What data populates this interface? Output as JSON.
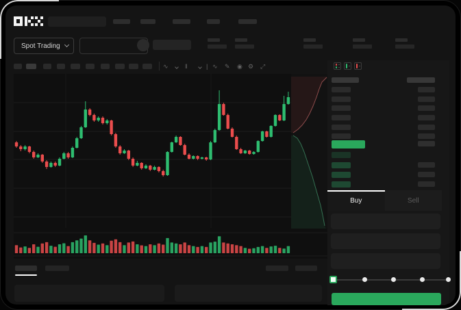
{
  "app": {
    "title": "OKX spot trading terminal (dark mode, skeleton placeholders)"
  },
  "topnav": {
    "logo_text": "OKX",
    "nav_placeholder_count": 5
  },
  "market_bar": {
    "market_type_label": "Spot Trading",
    "stat_group_count": 5
  },
  "toolbar": {
    "timeframe_placeholder_count": 10,
    "icons": [
      "indicator-line",
      "interval-chevron",
      "candle-style",
      "style-chevron",
      "separator",
      "trend-line-tool",
      "draw-tool",
      "snapshot",
      "chart-settings",
      "fullscreen"
    ],
    "glyphs": [
      "∿",
      "",
      "‖",
      "",
      "|",
      "∿",
      "✎",
      "◉",
      "⚙",
      "⤢"
    ]
  },
  "chart_data": {
    "type": "candlestick",
    "title": "",
    "xlabel": "",
    "ylabel": "",
    "note": "stylized mockup chart without visible axis labels; OHLC normalized to 0-100 scale",
    "up_color": "#2ebd70",
    "down_color": "#ea4d4d",
    "grid": {
      "h_lines_y_local": [
        42,
        84,
        125,
        167,
        209
      ],
      "v_lines_x_local": [
        76,
        288
      ]
    },
    "candles_ohlc": [
      [
        52,
        53,
        48,
        49
      ],
      [
        49,
        50,
        45.5,
        47
      ],
      [
        47,
        50,
        46,
        49
      ],
      [
        49,
        49.5,
        44,
        45
      ],
      [
        45,
        46,
        40,
        41
      ],
      [
        41,
        44,
        40.5,
        43
      ],
      [
        43,
        43.5,
        37,
        38
      ],
      [
        38,
        39,
        32.5,
        34
      ],
      [
        34,
        38,
        33.5,
        37
      ],
      [
        37,
        38,
        34,
        35
      ],
      [
        35,
        41,
        34.5,
        40
      ],
      [
        40,
        45,
        39.5,
        44
      ],
      [
        44,
        45,
        40,
        41
      ],
      [
        41,
        49,
        40.5,
        48
      ],
      [
        48,
        56,
        47.5,
        55
      ],
      [
        55,
        64,
        54.5,
        63
      ],
      [
        63,
        82,
        62.5,
        76
      ],
      [
        76,
        77,
        71,
        72
      ],
      [
        72,
        73,
        67,
        68
      ],
      [
        68,
        71,
        67,
        70
      ],
      [
        70,
        71,
        65,
        66
      ],
      [
        66,
        69,
        65,
        68
      ],
      [
        68,
        68.5,
        57,
        58
      ],
      [
        58,
        59,
        48,
        49
      ],
      [
        49,
        50,
        43,
        44
      ],
      [
        44,
        47,
        43.5,
        46
      ],
      [
        46,
        46.5,
        39,
        40
      ],
      [
        40,
        41,
        34,
        35
      ],
      [
        35,
        38.5,
        34.5,
        37
      ],
      [
        37,
        37.5,
        32,
        33
      ],
      [
        33,
        36,
        32.5,
        35
      ],
      [
        35,
        35.5,
        31,
        32
      ],
      [
        32,
        35,
        31.5,
        34
      ],
      [
        34,
        34.5,
        30,
        31
      ],
      [
        31,
        32,
        27,
        28
      ],
      [
        28,
        45.5,
        27.5,
        45
      ],
      [
        45,
        52.5,
        44.5,
        52
      ],
      [
        52,
        57,
        51.5,
        56
      ],
      [
        56,
        56.5,
        49.5,
        50
      ],
      [
        50,
        51,
        42.5,
        43
      ],
      [
        43,
        44,
        39.5,
        40
      ],
      [
        40,
        42.5,
        39.5,
        42
      ],
      [
        42,
        42.5,
        39,
        40
      ],
      [
        40,
        41.5,
        39.5,
        41
      ],
      [
        41,
        41.5,
        38.5,
        39.5
      ],
      [
        39.5,
        53,
        39,
        52
      ],
      [
        52,
        62,
        51.5,
        61
      ],
      [
        61,
        90,
        60.5,
        80
      ],
      [
        80,
        81,
        71.5,
        72
      ],
      [
        72,
        73,
        61.5,
        62
      ],
      [
        62,
        63,
        55.5,
        56
      ],
      [
        56,
        57,
        46.5,
        47
      ],
      [
        47,
        48,
        43.5,
        44
      ],
      [
        44,
        46.5,
        43.5,
        46
      ],
      [
        46,
        46.5,
        43,
        43.5
      ],
      [
        43.5,
        45.5,
        43,
        45
      ],
      [
        45,
        53.5,
        44.5,
        53
      ],
      [
        53,
        60.5,
        52.5,
        60
      ],
      [
        60,
        60.5,
        55.5,
        56
      ],
      [
        56,
        64.5,
        55.5,
        64
      ],
      [
        64,
        72.5,
        63.5,
        72
      ],
      [
        72,
        72.5,
        67.5,
        68
      ],
      [
        68,
        86,
        67.5,
        80
      ],
      [
        80,
        89,
        79.5,
        85
      ]
    ],
    "volume_relative": [
      0.45,
      0.32,
      0.38,
      0.3,
      0.5,
      0.36,
      0.55,
      0.62,
      0.42,
      0.36,
      0.5,
      0.56,
      0.4,
      0.62,
      0.72,
      0.82,
      1.0,
      0.72,
      0.58,
      0.48,
      0.55,
      0.45,
      0.7,
      0.78,
      0.62,
      0.45,
      0.6,
      0.66,
      0.5,
      0.44,
      0.4,
      0.5,
      0.45,
      0.55,
      0.48,
      0.85,
      0.6,
      0.55,
      0.5,
      0.6,
      0.45,
      0.4,
      0.35,
      0.4,
      0.35,
      0.6,
      0.65,
      0.95,
      0.6,
      0.55,
      0.5,
      0.45,
      0.4,
      0.3,
      0.25,
      0.28,
      0.35,
      0.4,
      0.3,
      0.38,
      0.42,
      0.3,
      0.26,
      0.4
    ],
    "depth": {
      "asks_curve_local": [
        [
          457,
          5
        ],
        [
          450,
          12
        ],
        [
          446,
          22
        ],
        [
          442,
          34
        ],
        [
          437,
          47
        ],
        [
          432,
          58
        ],
        [
          427,
          67
        ],
        [
          421,
          75
        ],
        [
          415,
          81
        ],
        [
          408,
          86
        ]
      ],
      "bids_curve_local": [
        [
          408,
          90
        ],
        [
          414,
          94
        ],
        [
          419,
          102
        ],
        [
          424,
          114
        ],
        [
          428,
          126
        ],
        [
          432,
          138
        ],
        [
          436,
          150
        ],
        [
          440,
          164
        ],
        [
          444,
          178
        ],
        [
          448,
          192
        ],
        [
          451,
          206
        ],
        [
          454,
          222
        ]
      ],
      "ask_fill": "rgba(229,77,77,0.09)",
      "bid_fill": "rgba(46,189,112,0.09)",
      "ask_stroke": "rgba(236,122,122,0.55)",
      "bid_stroke": "rgba(86,200,142,0.5)"
    }
  },
  "orderbook": {
    "view_modes": [
      "book-combined",
      "book-buys",
      "book-sells"
    ],
    "ask_row_count": 6,
    "bid_row_count": 4,
    "price_highlight_color": "#2aa85c"
  },
  "trade_panel": {
    "tabs": [
      {
        "label": "Buy",
        "active": true
      },
      {
        "label": "Sell",
        "active": false
      }
    ],
    "field_count": 3,
    "slider_stop_count": 5,
    "submit_color": "#2aa85c"
  },
  "bottom_bar": {
    "tab_count": 2,
    "right_link_count": 2,
    "panel_count": 2
  },
  "colors": {
    "up": "#2ebd70",
    "down": "#ea4d4d",
    "accent": "#2aa85c",
    "panel_bg": "#141414"
  }
}
